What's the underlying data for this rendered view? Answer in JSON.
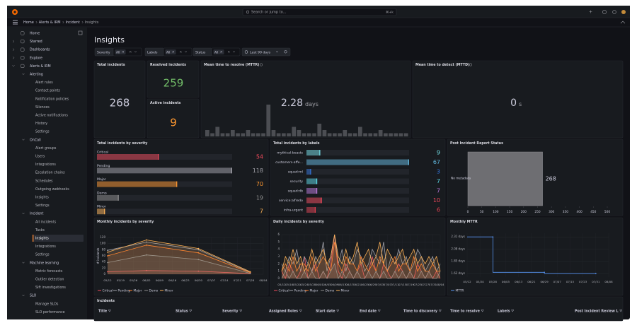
{
  "topbar": {
    "search": "Search or jump to...",
    "shortcut": "⌘+k"
  },
  "breadcrumb": [
    "Home",
    "Alerts & IRM",
    "Incident",
    "Insights"
  ],
  "nav": [
    {
      "label": "Home"
    },
    {
      "label": "Starred"
    },
    {
      "label": "Dashboards"
    },
    {
      "label": "Explore"
    },
    {
      "label": "Alerts & IRM",
      "children": [
        {
          "label": "Alerting",
          "children": [
            {
              "label": "Alert rules"
            },
            {
              "label": "Contact points"
            },
            {
              "label": "Notification policies"
            },
            {
              "label": "Silences"
            },
            {
              "label": "Active notifications"
            },
            {
              "label": "History"
            },
            {
              "label": "Settings"
            }
          ]
        },
        {
          "label": "OnCall",
          "children": [
            {
              "label": "Alert groups"
            },
            {
              "label": "Users"
            },
            {
              "label": "Integrations"
            },
            {
              "label": "Escalation chains"
            },
            {
              "label": "Schedules"
            },
            {
              "label": "Outgoing webhooks"
            },
            {
              "label": "Insights"
            },
            {
              "label": "Settings"
            }
          ]
        },
        {
          "label": "Incident",
          "children": [
            {
              "label": "All incidents"
            },
            {
              "label": "Tasks"
            },
            {
              "label": "Insights",
              "active": true
            },
            {
              "label": "Integrations"
            },
            {
              "label": "Settings"
            }
          ]
        },
        {
          "label": "Machine learning",
          "children": [
            {
              "label": "Metric forecasts"
            },
            {
              "label": "Outlier detection"
            },
            {
              "label": "Sift investigations"
            }
          ]
        },
        {
          "label": "SLO",
          "children": [
            {
              "label": "Manage SLOs"
            },
            {
              "label": "SLO performance"
            }
          ]
        }
      ]
    }
  ],
  "page_title": "Insights",
  "filters": [
    {
      "label": "Severity",
      "value": "All"
    },
    {
      "label": "Labels",
      "value": "All"
    },
    {
      "label": "Status",
      "value": "All"
    }
  ],
  "time_range": "Last 90 days",
  "stats": {
    "total": {
      "title": "Total incidents",
      "value": 268,
      "color": "#ccccdc"
    },
    "resolved": {
      "title": "Resolved incidents",
      "value": 259,
      "color": "#73bf69"
    },
    "active": {
      "title": "Active incidents",
      "value": 9,
      "color": "#ff9830"
    },
    "mttr": {
      "title": "Mean time to resolve (MTTR)",
      "value": 2.28,
      "unit": "days",
      "color": "#ccccdc",
      "sparkline": [
        2,
        1,
        3,
        1,
        1,
        2,
        1,
        1,
        2,
        1,
        1,
        1,
        10,
        2,
        1,
        1,
        1,
        3,
        2,
        1,
        1,
        1,
        4,
        2,
        1,
        1,
        1,
        2,
        1,
        1,
        3,
        1,
        1,
        1,
        2,
        1,
        1,
        1,
        1,
        1
      ]
    },
    "mttd": {
      "title": "Mean time to detect (MTTD)",
      "value": 0,
      "unit": "s",
      "color": "#ccccdc"
    }
  },
  "chart_data": [
    {
      "type": "hbar",
      "title": "Total incidents by severity",
      "categories": [
        "Critical",
        "Pending",
        "Major",
        "Demo",
        "Minor"
      ],
      "values": [
        54,
        118,
        70,
        19,
        7
      ],
      "colors": [
        "#f2495c",
        "#a0a0a8",
        "#ff9830",
        "#8e8e8e",
        "#ffb357"
      ],
      "xlim": [
        0,
        118
      ]
    },
    {
      "type": "hbar",
      "title": "Total incidents by labels",
      "categories": [
        "mythical-beasts",
        "customers-affe...",
        "squad:ml",
        "security",
        "squad:db",
        "service:alfredo",
        "infra-urgent"
      ],
      "values": [
        9,
        67,
        3,
        7,
        7,
        10,
        6
      ],
      "colors": [
        "#73e0e8",
        "#5fb3d9",
        "#3274d9",
        "#5ad8e6",
        "#b877d9",
        "#f2495c",
        "#e0404f"
      ],
      "xlim": [
        0,
        67
      ]
    },
    {
      "type": "report",
      "title": "Post Incident Report Status",
      "categories": [
        "No metadata"
      ],
      "values": [
        268
      ],
      "color": "#6e6e72",
      "xlim": [
        0,
        500
      ],
      "xticks": [
        0,
        50,
        100,
        150,
        200,
        250,
        300,
        350,
        400,
        450,
        500
      ]
    },
    {
      "type": "line",
      "title": "Monthly incidents by severity",
      "ylabel": "# incidents",
      "x": [
        "05/12",
        "06/02",
        "06/30",
        "07/28"
      ],
      "xticks": [
        "05/12",
        "05/19",
        "05/26",
        "06/02",
        "06/09",
        "06/16",
        "06/23",
        "06/30",
        "07/07",
        "07/14",
        "07/21",
        "07/28",
        "08/04"
      ],
      "ylim": [
        0,
        120
      ],
      "yticks": [
        0,
        20,
        40,
        60,
        80,
        100,
        120
      ],
      "fill": true,
      "series": [
        {
          "name": "Critical",
          "color": "#f2495c",
          "values": [
            8,
            12,
            10,
            2
          ]
        },
        {
          "name": "Pending",
          "color": "#a0a0a8",
          "values": [
            78,
            105,
            80,
            6
          ]
        },
        {
          "name": "Major",
          "color": "#ff7f2a",
          "values": [
            60,
            95,
            70,
            5
          ]
        },
        {
          "name": "Demo",
          "color": "#8e8e8e",
          "values": [
            38,
            63,
            48,
            3
          ]
        },
        {
          "name": "Minor",
          "color": "#ffb357",
          "values": [
            72,
            112,
            84,
            8
          ]
        }
      ]
    },
    {
      "type": "line",
      "title": "Daily incidents by severity",
      "x": [
        "05/12",
        "05/14",
        "05/16",
        "05/18",
        "05/20",
        "05/22",
        "05/24",
        "05/26",
        "05/28",
        "05/30",
        "06/01",
        "06/03",
        "06/05",
        "06/07",
        "06/09",
        "06/11",
        "06/13",
        "06/15",
        "06/17",
        "06/19",
        "06/21",
        "06/23",
        "06/25",
        "06/27",
        "06/29",
        "07/01",
        "07/03",
        "07/05",
        "07/07",
        "07/09",
        "07/11",
        "07/13",
        "07/15",
        "07/17",
        "07/19",
        "07/21",
        "07/23",
        "07/25",
        "07/27",
        "07/29",
        "07/31",
        "08/02",
        "08/04"
      ],
      "xticks": [
        "05/12",
        "05/16",
        "05/20",
        "05/24",
        "05/28",
        "06/01",
        "06/05",
        "06/09",
        "06/13",
        "06/17",
        "06/21",
        "06/25",
        "06/29",
        "07/03",
        "07/07",
        "07/11",
        "07/15",
        "07/19",
        "07/23",
        "07/27",
        "07/31",
        "08/04"
      ],
      "ylim": [
        0,
        6
      ],
      "yticks": [
        0,
        1,
        2,
        3,
        4,
        5,
        6
      ],
      "fill": true,
      "series": [
        {
          "name": "Critical",
          "color": "#f2495c",
          "values": [
            1,
            0,
            2,
            1,
            0,
            1,
            3,
            0,
            1,
            2,
            0,
            1,
            0,
            2,
            6,
            1,
            0,
            2,
            1,
            0,
            1,
            2,
            0,
            1,
            3,
            1,
            0,
            2,
            1,
            0,
            1,
            2,
            1,
            0,
            1,
            0,
            2,
            1,
            0,
            1,
            0,
            1,
            0
          ]
        },
        {
          "name": "Pending",
          "color": "#a0a0a8",
          "values": [
            2,
            1,
            3,
            2,
            4,
            1,
            3,
            2,
            1,
            3,
            2,
            5,
            1,
            3,
            6,
            2,
            4,
            1,
            3,
            2,
            4,
            3,
            1,
            2,
            4,
            3,
            2,
            5,
            1,
            3,
            2,
            4,
            2,
            3,
            1,
            2,
            4,
            3,
            1,
            2,
            3,
            1,
            2
          ]
        },
        {
          "name": "Major",
          "color": "#ff7f2a",
          "values": [
            1,
            2,
            1,
            3,
            1,
            2,
            2,
            1,
            3,
            1,
            2,
            3,
            2,
            1,
            5,
            2,
            1,
            3,
            2,
            2,
            1,
            3,
            2,
            1,
            2,
            1,
            3,
            2,
            1,
            2,
            3,
            1,
            2,
            2,
            1,
            3,
            1,
            2,
            1,
            1,
            2,
            1,
            1
          ]
        },
        {
          "name": "Demo",
          "color": "#8e8e8e",
          "values": [
            0,
            1,
            0,
            1,
            0,
            0,
            1,
            0,
            1,
            0,
            0,
            1,
            0,
            1,
            2,
            0,
            1,
            0,
            1,
            0,
            1,
            0,
            0,
            1,
            0,
            1,
            0,
            1,
            0,
            0,
            1,
            0,
            1,
            0,
            1,
            0,
            0,
            1,
            0,
            1,
            0,
            0,
            1
          ]
        },
        {
          "name": "Minor",
          "color": "#ffb357",
          "values": [
            1,
            3,
            2,
            4,
            2,
            3,
            1,
            2,
            4,
            2,
            3,
            4,
            2,
            3,
            6,
            3,
            2,
            4,
            2,
            3,
            5,
            2,
            3,
            4,
            2,
            3,
            5,
            2,
            4,
            3,
            2,
            3,
            4,
            2,
            3,
            4,
            2,
            3,
            2,
            3,
            2,
            3,
            1
          ]
        }
      ]
    },
    {
      "type": "step",
      "title": "Monthly MTTR",
      "x": [
        "05/28",
        "06/29",
        "07/31"
      ],
      "xticks": [
        "05/12",
        "05/20",
        "05/28",
        "06/05",
        "06/13",
        "06/21",
        "06/29",
        "07/07",
        "07/15",
        "07/23",
        "07/31",
        "08/08"
      ],
      "ylim": [
        1.55,
        2.38
      ],
      "yticks": [
        {
          "value": 1.62,
          "label": "1.62 days"
        },
        {
          "value": 1.85,
          "label": "1.85 days"
        },
        {
          "value": 2.08,
          "label": "2.08 days"
        },
        {
          "value": 2.31,
          "label": "2.31 days"
        }
      ],
      "series": [
        {
          "name": "MTTR",
          "color": "#5794f2",
          "values": [
            2.31,
            1.64,
            1.62
          ]
        }
      ]
    }
  ],
  "table": {
    "title": "Incidents",
    "columns": [
      "Title",
      "Status",
      "Severity",
      "Assigned Roles",
      "Start date",
      "End date",
      "Time to discovery",
      "Time to resolve",
      "Labels",
      "Post Incident Review L"
    ]
  }
}
